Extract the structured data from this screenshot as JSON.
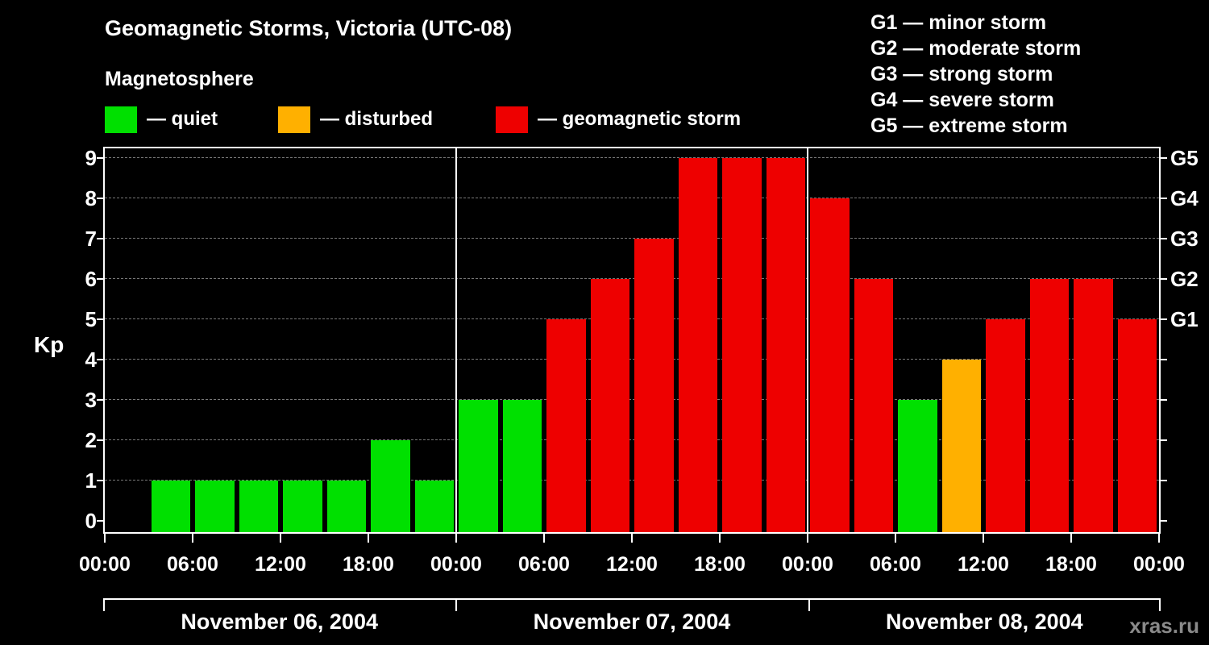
{
  "title": "Geomagnetic Storms, Victoria (UTC-08)",
  "subtitle": "Magnetosphere",
  "legend": {
    "items": [
      {
        "label": "— quiet",
        "color_key": "quiet"
      },
      {
        "label": "— disturbed",
        "color_key": "disturbed"
      },
      {
        "label": "— geomagnetic storm",
        "color_key": "storm"
      }
    ]
  },
  "storm_scale": [
    "G1 — minor storm",
    "G2 — moderate storm",
    "G3 — strong storm",
    "G4 — severe storm",
    "G5 — extreme storm"
  ],
  "watermark": "xras.ru",
  "chart_data": {
    "type": "bar",
    "title": "Geomagnetic Storms, Victoria (UTC-08)",
    "ylabel": "Kp",
    "ylim": [
      0,
      9
    ],
    "yticks": [
      0,
      1,
      2,
      3,
      4,
      5,
      6,
      7,
      8,
      9
    ],
    "grid": "horizontal-dashed",
    "legend_position": "top",
    "colors": {
      "quiet": "#00e000",
      "disturbed": "#ffb000",
      "storm": "#ee0000",
      "axis": "#ffffff"
    },
    "color_rules": {
      "quiet_max_kp": 3,
      "disturbed_kp": 4,
      "storm_min_kp": 5
    },
    "right_axis_labels": [
      {
        "kp": 5,
        "label": "G1"
      },
      {
        "kp": 6,
        "label": "G2"
      },
      {
        "kp": 7,
        "label": "G3"
      },
      {
        "kp": 8,
        "label": "G4"
      },
      {
        "kp": 9,
        "label": "G5"
      }
    ],
    "x_tick_labels": [
      "00:00",
      "06:00",
      "12:00",
      "18:00",
      "00:00",
      "06:00",
      "12:00",
      "18:00",
      "00:00",
      "06:00",
      "12:00",
      "18:00",
      "00:00"
    ],
    "interval_hours": 3,
    "days": [
      {
        "date": "November 06, 2004",
        "values": [
          0,
          1,
          1,
          1,
          1,
          1,
          2,
          1
        ]
      },
      {
        "date": "November 07, 2004",
        "values": [
          3,
          3,
          5,
          6,
          7,
          9,
          9,
          9
        ]
      },
      {
        "date": "November 08, 2004",
        "values": [
          8,
          6,
          3,
          4,
          5,
          6,
          6,
          5
        ]
      }
    ]
  }
}
